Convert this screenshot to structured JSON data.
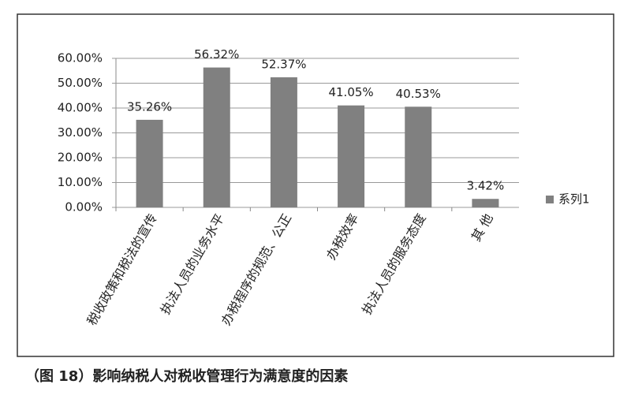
{
  "chart_data": {
    "type": "bar",
    "caption": "（图 18）影响纳税人对税收管理行为满意度的因素",
    "categories": [
      "税收政策和税法的宣传",
      "执法人员的业务水平",
      "办税程序的规范、公正",
      "办税效率",
      "执法人员的服务态度",
      "其 他"
    ],
    "series": [
      {
        "name": "系列1",
        "color": "#808080",
        "values": [
          35.26,
          56.32,
          52.37,
          41.05,
          40.53,
          3.42
        ],
        "value_labels": [
          "35.26%",
          "56.32%",
          "52.37%",
          "41.05%",
          "40.53%",
          "3.42%"
        ]
      }
    ],
    "ylim": [
      0,
      60
    ],
    "yticks": [
      {
        "value": 0,
        "label": "0.00%"
      },
      {
        "value": 10,
        "label": "10.00%"
      },
      {
        "value": 20,
        "label": "20.00%"
      },
      {
        "value": 30,
        "label": "30.00%"
      },
      {
        "value": 40,
        "label": "40.00%"
      },
      {
        "value": 50,
        "label": "50.00%"
      },
      {
        "value": 60,
        "label": "60.00%"
      }
    ],
    "grid": true,
    "legend": "right"
  }
}
